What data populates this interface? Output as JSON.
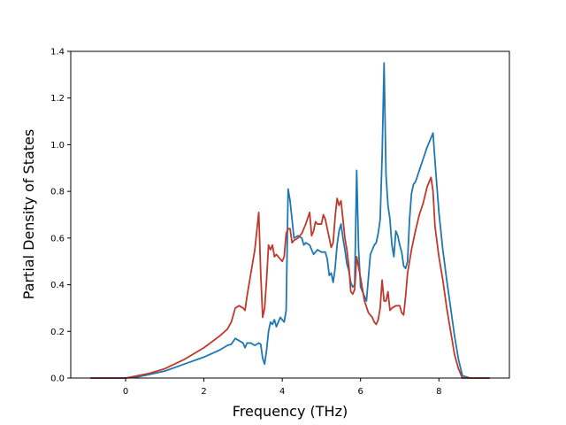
{
  "chart_data": {
    "type": "line",
    "title": "",
    "xlabel": "Frequency (THz)",
    "ylabel": "Partial Density of States",
    "xlim": [
      -1.4,
      9.8
    ],
    "ylim": [
      0.0,
      1.4
    ],
    "xticks": [
      0,
      2,
      4,
      6,
      8
    ],
    "yticks": [
      0.0,
      0.2,
      0.4,
      0.6,
      0.8,
      1.0,
      1.2,
      1.4
    ],
    "xtick_labels": [
      "0",
      "2",
      "4",
      "6",
      "8"
    ],
    "ytick_labels": [
      "0.0",
      "0.2",
      "0.4",
      "0.6",
      "0.8",
      "1.0",
      "1.2",
      "1.4"
    ],
    "grid": false,
    "legend": false,
    "series": [
      {
        "color": "#1f77b4",
        "x": [
          -0.9,
          -0.5,
          0.0,
          0.3,
          0.6,
          1.0,
          1.5,
          2.0,
          2.4,
          2.6,
          2.7,
          2.8,
          2.9,
          3.0,
          3.05,
          3.1,
          3.2,
          3.3,
          3.4,
          3.45,
          3.5,
          3.55,
          3.6,
          3.65,
          3.7,
          3.75,
          3.8,
          3.85,
          3.9,
          3.95,
          4.0,
          4.05,
          4.1,
          4.15,
          4.2,
          4.25,
          4.3,
          4.4,
          4.5,
          4.55,
          4.6,
          4.7,
          4.8,
          4.9,
          5.0,
          5.1,
          5.15,
          5.2,
          5.25,
          5.3,
          5.35,
          5.4,
          5.45,
          5.5,
          5.55,
          5.6,
          5.65,
          5.7,
          5.75,
          5.8,
          5.85,
          5.9,
          5.95,
          6.0,
          6.05,
          6.1,
          6.15,
          6.2,
          6.25,
          6.3,
          6.35,
          6.4,
          6.45,
          6.5,
          6.55,
          6.6,
          6.65,
          6.7,
          6.75,
          6.8,
          6.85,
          6.9,
          6.95,
          7.0,
          7.05,
          7.1,
          7.15,
          7.2,
          7.25,
          7.3,
          7.35,
          7.4,
          7.5,
          7.6,
          7.7,
          7.8,
          7.85,
          7.9,
          8.0,
          8.1,
          8.2,
          8.3,
          8.4,
          8.5,
          8.6,
          8.8,
          9.3
        ],
        "y": [
          0.0,
          0.0,
          0.0,
          0.005,
          0.015,
          0.03,
          0.06,
          0.09,
          0.12,
          0.14,
          0.145,
          0.17,
          0.16,
          0.15,
          0.13,
          0.15,
          0.15,
          0.14,
          0.15,
          0.145,
          0.085,
          0.06,
          0.12,
          0.2,
          0.24,
          0.23,
          0.25,
          0.22,
          0.24,
          0.26,
          0.25,
          0.24,
          0.29,
          0.81,
          0.76,
          0.68,
          0.6,
          0.61,
          0.6,
          0.57,
          0.58,
          0.57,
          0.53,
          0.55,
          0.54,
          0.54,
          0.51,
          0.44,
          0.45,
          0.41,
          0.47,
          0.57,
          0.63,
          0.66,
          0.6,
          0.55,
          0.49,
          0.46,
          0.41,
          0.39,
          0.4,
          0.89,
          0.55,
          0.39,
          0.37,
          0.35,
          0.33,
          0.43,
          0.53,
          0.55,
          0.57,
          0.58,
          0.62,
          0.68,
          0.95,
          1.35,
          0.87,
          0.74,
          0.68,
          0.57,
          0.52,
          0.63,
          0.61,
          0.57,
          0.54,
          0.48,
          0.47,
          0.5,
          0.68,
          0.79,
          0.83,
          0.84,
          0.89,
          0.94,
          0.99,
          1.03,
          1.05,
          0.93,
          0.71,
          0.55,
          0.42,
          0.3,
          0.18,
          0.08,
          0.01,
          0.0,
          0.0
        ]
      },
      {
        "color": "#c0392b",
        "x": [
          -0.9,
          -0.5,
          0.0,
          0.3,
          0.6,
          1.0,
          1.5,
          2.0,
          2.4,
          2.6,
          2.7,
          2.75,
          2.8,
          2.9,
          3.0,
          3.05,
          3.1,
          3.2,
          3.3,
          3.4,
          3.45,
          3.5,
          3.55,
          3.6,
          3.65,
          3.7,
          3.75,
          3.8,
          3.85,
          3.9,
          3.95,
          4.0,
          4.05,
          4.1,
          4.15,
          4.2,
          4.25,
          4.3,
          4.4,
          4.5,
          4.6,
          4.7,
          4.75,
          4.8,
          4.85,
          4.9,
          5.0,
          5.05,
          5.1,
          5.2,
          5.25,
          5.3,
          5.35,
          5.4,
          5.45,
          5.5,
          5.55,
          5.6,
          5.65,
          5.7,
          5.75,
          5.8,
          5.85,
          5.9,
          6.0,
          6.1,
          6.2,
          6.3,
          6.35,
          6.4,
          6.45,
          6.5,
          6.55,
          6.6,
          6.65,
          6.7,
          6.75,
          6.8,
          6.9,
          7.0,
          7.05,
          7.1,
          7.15,
          7.2,
          7.3,
          7.4,
          7.5,
          7.6,
          7.7,
          7.8,
          7.85,
          7.9,
          8.0,
          8.1,
          8.2,
          8.3,
          8.4,
          8.5,
          8.6,
          8.8,
          9.3
        ],
        "y": [
          0.0,
          0.0,
          0.0,
          0.01,
          0.02,
          0.04,
          0.08,
          0.13,
          0.18,
          0.21,
          0.24,
          0.27,
          0.3,
          0.31,
          0.3,
          0.29,
          0.35,
          0.45,
          0.55,
          0.71,
          0.45,
          0.26,
          0.3,
          0.42,
          0.57,
          0.55,
          0.57,
          0.52,
          0.53,
          0.52,
          0.51,
          0.5,
          0.52,
          0.62,
          0.64,
          0.64,
          0.58,
          0.59,
          0.6,
          0.62,
          0.66,
          0.71,
          0.61,
          0.63,
          0.67,
          0.66,
          0.66,
          0.7,
          0.68,
          0.6,
          0.56,
          0.58,
          0.69,
          0.77,
          0.74,
          0.76,
          0.68,
          0.6,
          0.55,
          0.48,
          0.37,
          0.36,
          0.38,
          0.52,
          0.43,
          0.33,
          0.28,
          0.26,
          0.24,
          0.23,
          0.25,
          0.3,
          0.42,
          0.33,
          0.33,
          0.37,
          0.29,
          0.3,
          0.31,
          0.31,
          0.28,
          0.27,
          0.35,
          0.45,
          0.55,
          0.63,
          0.7,
          0.75,
          0.82,
          0.86,
          0.8,
          0.65,
          0.52,
          0.42,
          0.3,
          0.2,
          0.1,
          0.04,
          0.0,
          0.0,
          0.0
        ]
      }
    ]
  }
}
